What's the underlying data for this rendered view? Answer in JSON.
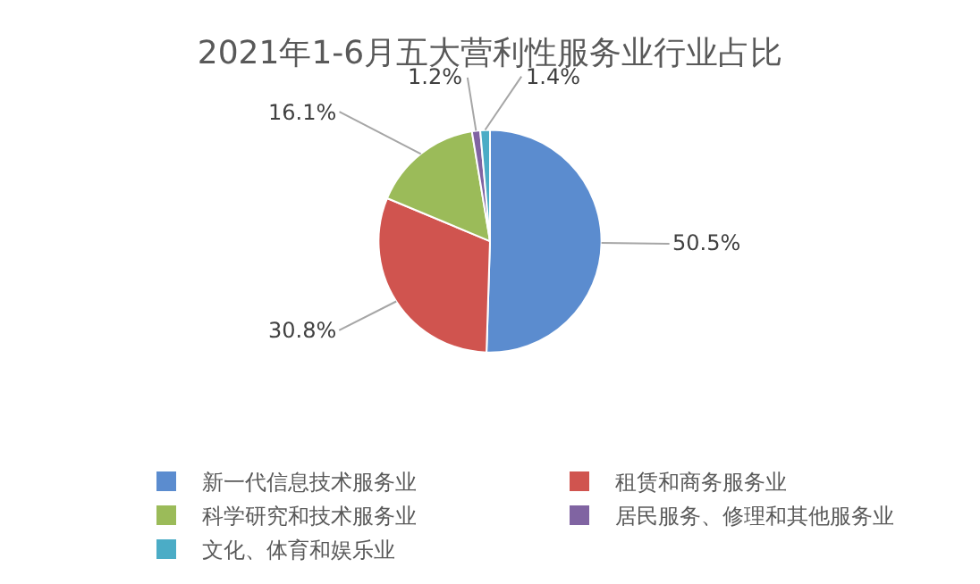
{
  "chart_data": {
    "type": "pie",
    "title": "2021年1-6月五大营利性服务业行业占比",
    "categories": [
      "新一代信息技术服务业",
      "租赁和商务服务业",
      "科学研究和技术服务业",
      "居民服务、修理和其他服务业",
      "文化、体育和娱乐业"
    ],
    "values": [
      50.5,
      30.8,
      16.1,
      1.2,
      1.4
    ],
    "colors": [
      "#5b8ccf",
      "#d0544f",
      "#9bbb59",
      "#8064a2",
      "#4bacc6"
    ],
    "value_labels": [
      "50.5%",
      "30.8%",
      "16.1%",
      "1.2%",
      "1.4%"
    ],
    "legend": "bottom"
  }
}
